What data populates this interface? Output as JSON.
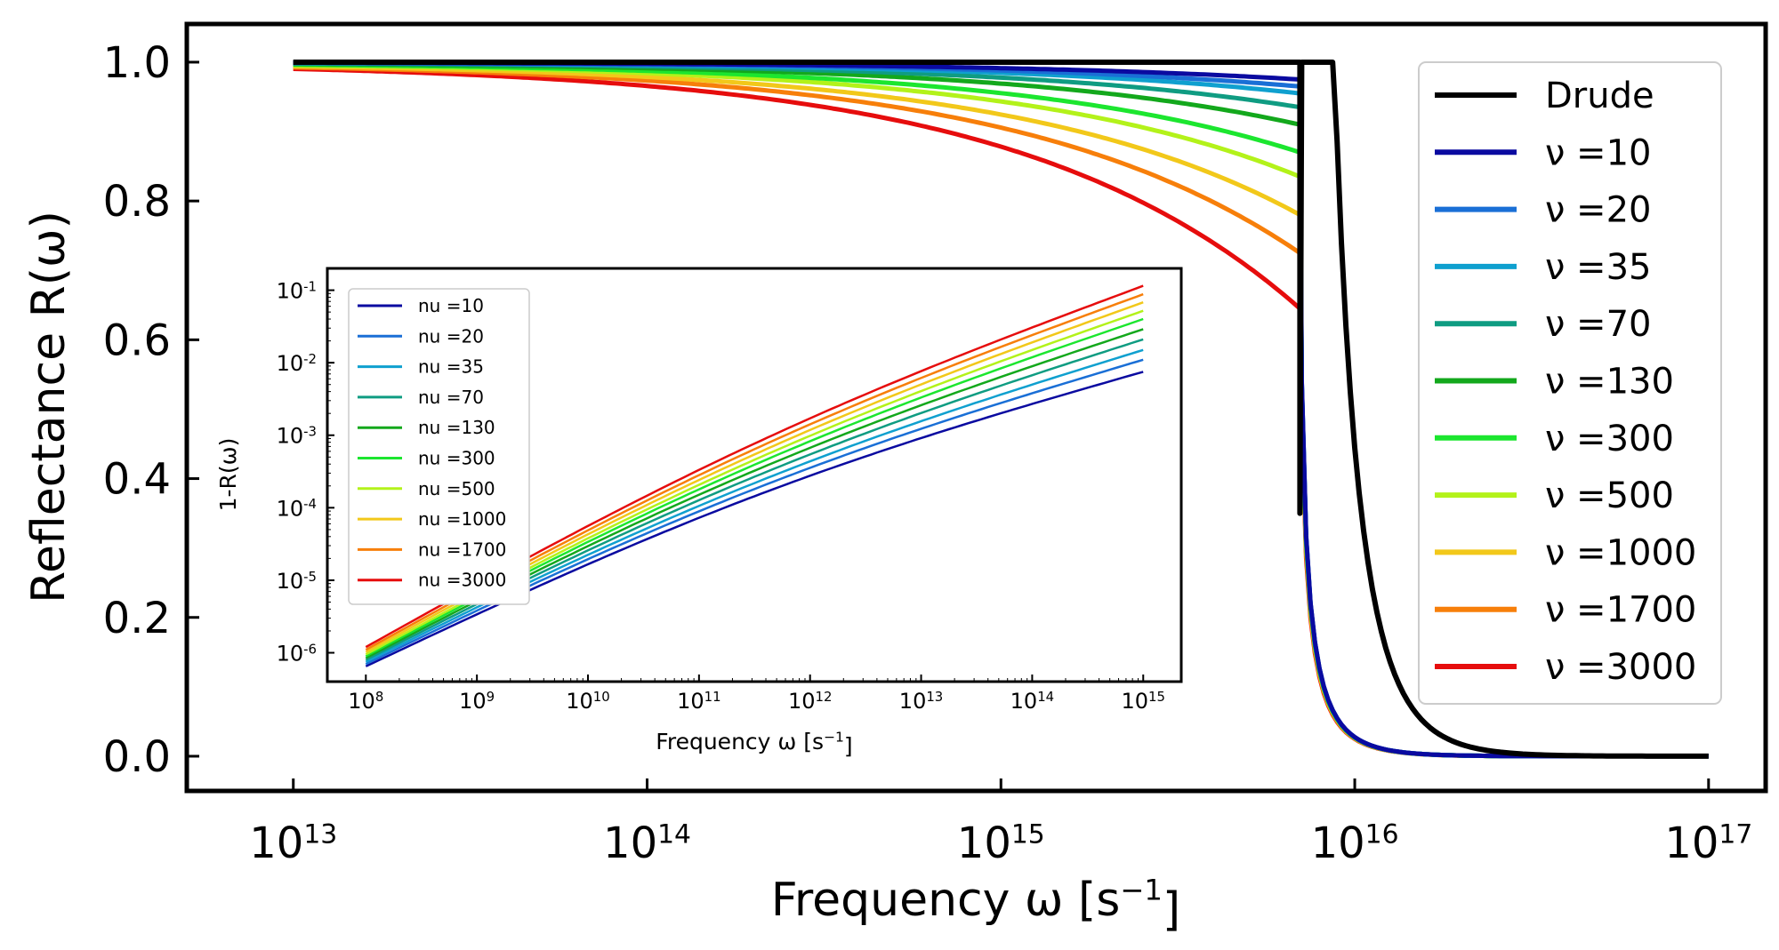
{
  "chart_data": [
    {
      "type": "line",
      "x_scale": "log",
      "xlim": [
        5000000000000.0,
        1.45e+17
      ],
      "ylim": [
        -0.05,
        1.055
      ],
      "xlabel": "Frequency ω [s⁻¹]",
      "ylabel": "Reflectance R(ω)",
      "xticks": [
        10000000000000.0,
        100000000000000.0,
        1000000000000000.0,
        1e+16,
        1e+17
      ],
      "xtick_labels": [
        "10^13",
        "10^14",
        "10^15",
        "10^16",
        "10^17"
      ],
      "yticks": [
        0.0,
        0.2,
        0.4,
        0.6,
        0.8,
        1.0
      ],
      "ytick_labels": [
        "0.0",
        "0.2",
        "0.4",
        "0.6",
        "0.8",
        "1.0"
      ],
      "plasma_frequency": 7000000000000000.0,
      "legend_position": "right",
      "series": [
        {
          "name": "Drude",
          "color": "#000000",
          "drude": true
        },
        {
          "name": "ν =10",
          "nu": 10,
          "color": "#0a0aa0",
          "edge_value": 0.975
        },
        {
          "name": "ν =20",
          "nu": 20,
          "color": "#1a6fd6",
          "edge_value": 0.965
        },
        {
          "name": "ν =35",
          "nu": 35,
          "color": "#0fa0cf",
          "edge_value": 0.955
        },
        {
          "name": "ν =70",
          "nu": 70,
          "color": "#0f9c82",
          "edge_value": 0.935
        },
        {
          "name": "ν =130",
          "nu": 130,
          "color": "#13a81c",
          "edge_value": 0.91
        },
        {
          "name": "ν =300",
          "nu": 300,
          "color": "#1ce62f",
          "edge_value": 0.87
        },
        {
          "name": "ν =500",
          "nu": 500,
          "color": "#b3f21a",
          "edge_value": 0.835
        },
        {
          "name": "ν =1000",
          "nu": 1000,
          "color": "#f2c81a",
          "edge_value": 0.78
        },
        {
          "name": "ν =1700",
          "nu": 1700,
          "color": "#f77f0a",
          "edge_value": 0.725
        },
        {
          "name": "ν =3000",
          "nu": 3000,
          "color": "#e60d0d",
          "edge_value": 0.645
        }
      ]
    },
    {
      "type": "line",
      "x_scale": "log",
      "y_scale": "log",
      "xlim": [
        45000000.0,
        2200000000000000.0
      ],
      "ylim": [
        4e-07,
        0.2
      ],
      "xlabel": "Frequency ω [s⁻¹]",
      "ylabel": "1-R(ω)",
      "xticks": [
        100000000.0,
        1000000000.0,
        10000000000.0,
        100000000000.0,
        1000000000000.0,
        10000000000000.0,
        100000000000000.0,
        1000000000000000.0
      ],
      "xtick_labels": [
        "10^8",
        "10^9",
        "10^10",
        "10^11",
        "10^12",
        "10^13",
        "10^14",
        "10^15"
      ],
      "yticks": [
        1e-06,
        1e-05,
        0.0001,
        0.001,
        0.01,
        0.1
      ],
      "ytick_labels": [
        "10^-6",
        "10^-5",
        "10^-4",
        "10^-3",
        "10^-2",
        "10^-1"
      ],
      "legend_position": "upper left",
      "series": [
        {
          "name": "nu =10",
          "color": "#0a0aa0",
          "y_start": 6.5e-07,
          "y_end": 0.0075
        },
        {
          "name": "nu =20",
          "color": "#1a6fd6",
          "y_start": 7e-07,
          "y_end": 0.011
        },
        {
          "name": "nu =35",
          "color": "#0fa0cf",
          "y_start": 7.5e-07,
          "y_end": 0.015
        },
        {
          "name": "nu =70",
          "color": "#0f9c82",
          "y_start": 8e-07,
          "y_end": 0.021
        },
        {
          "name": "nu =130",
          "color": "#13a81c",
          "y_start": 8.5e-07,
          "y_end": 0.029
        },
        {
          "name": "nu =300",
          "color": "#1ce62f",
          "y_start": 9e-07,
          "y_end": 0.04
        },
        {
          "name": "nu =500",
          "color": "#b3f21a",
          "y_start": 9.5e-07,
          "y_end": 0.052
        },
        {
          "name": "nu =1000",
          "color": "#f2c81a",
          "y_start": 1.02e-06,
          "y_end": 0.068
        },
        {
          "name": "nu =1700",
          "color": "#f77f0a",
          "y_start": 1.1e-06,
          "y_end": 0.088
        },
        {
          "name": "nu =3000",
          "color": "#e60d0d",
          "y_start": 1.2e-06,
          "y_end": 0.115
        }
      ]
    }
  ]
}
